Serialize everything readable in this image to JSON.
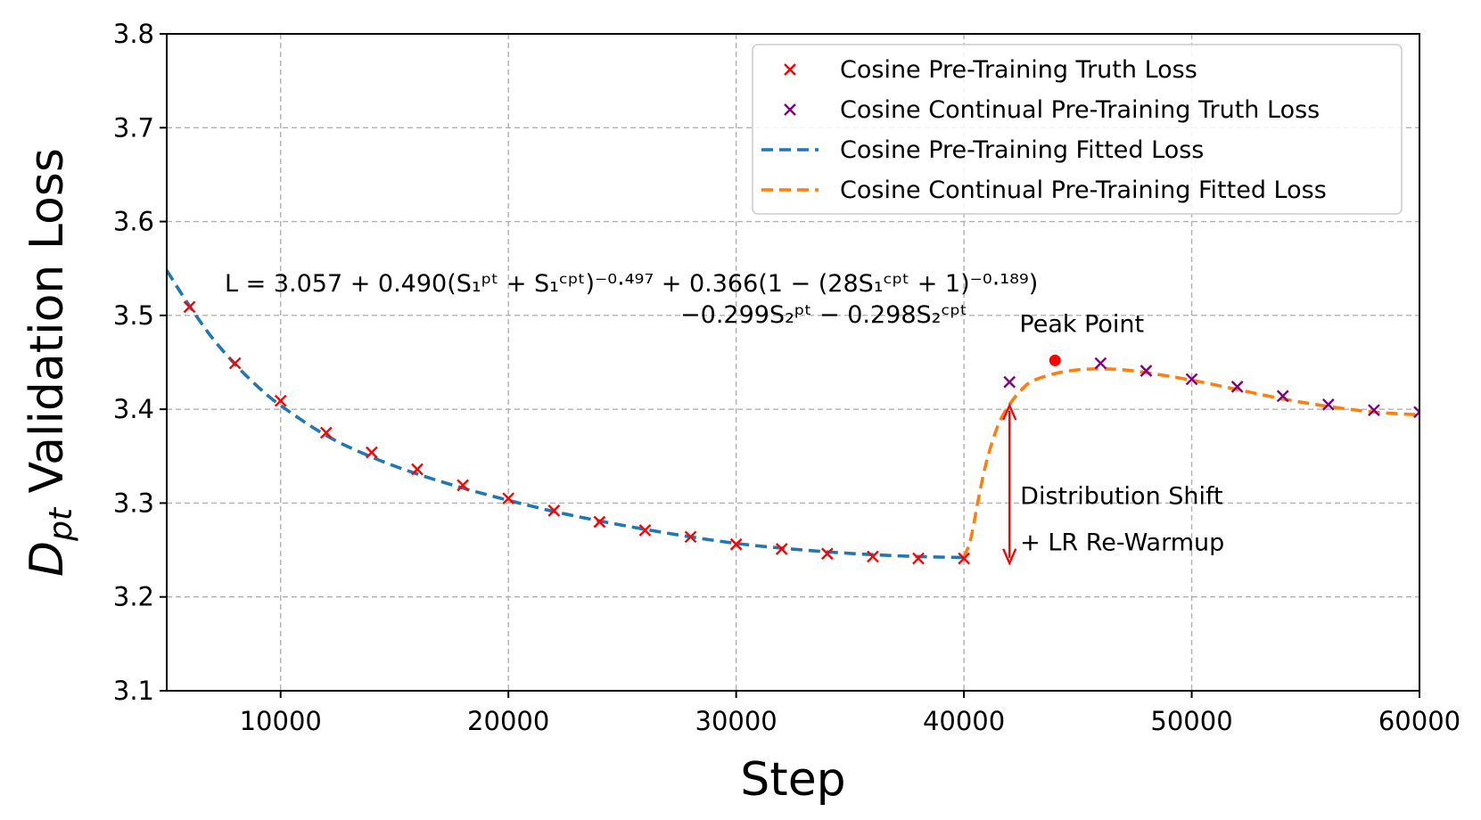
{
  "chart_data": {
    "type": "line",
    "xlabel": "Step",
    "ylabel_main": "D",
    "ylabel_sub": "pt",
    "ylabel_rest": " Validation Loss",
    "xlim": [
      5000,
      60000
    ],
    "ylim": [
      3.1,
      3.8
    ],
    "grid": true,
    "legend_placement": "upper-right",
    "x_ticks": [
      10000,
      20000,
      30000,
      40000,
      50000,
      60000
    ],
    "x_tick_labels": [
      "10000",
      "20000",
      "30000",
      "40000",
      "50000",
      "60000"
    ],
    "y_ticks": [
      3.1,
      3.2,
      3.3,
      3.4,
      3.5,
      3.6,
      3.7,
      3.8
    ],
    "y_tick_labels": [
      "3.1",
      "3.2",
      "3.3",
      "3.4",
      "3.5",
      "3.6",
      "3.7",
      "3.8"
    ],
    "series": [
      {
        "name": "Cosine Pre-Training Truth Loss",
        "kind": "scatter",
        "marker": "x",
        "color": "#ff0000",
        "x": [
          6000,
          8000,
          10000,
          12000,
          14000,
          16000,
          18000,
          20000,
          22000,
          24000,
          26000,
          28000,
          30000,
          32000,
          34000,
          36000,
          38000,
          40000
        ],
        "y": [
          3.509,
          3.449,
          3.409,
          3.375,
          3.354,
          3.336,
          3.319,
          3.305,
          3.292,
          3.28,
          3.271,
          3.264,
          3.256,
          3.251,
          3.246,
          3.243,
          3.241,
          3.241
        ]
      },
      {
        "name": "Cosine Continual Pre-Training Truth Loss",
        "kind": "scatter",
        "marker": "x",
        "color": "#800080",
        "x": [
          42000,
          46000,
          48000,
          50000,
          52000,
          54000,
          56000,
          58000,
          60000
        ],
        "y": [
          3.429,
          3.449,
          3.441,
          3.432,
          3.424,
          3.414,
          3.405,
          3.399,
          3.397
        ]
      },
      {
        "name": "Cosine Pre-Training Fitted Loss",
        "kind": "line",
        "dash": "dashed",
        "color": "#1f77b4",
        "x": [
          5000,
          6000,
          7000,
          8000,
          9000,
          10000,
          12000,
          14000,
          16000,
          18000,
          20000,
          22000,
          24000,
          26000,
          28000,
          30000,
          32000,
          34000,
          36000,
          38000,
          40000
        ],
        "y": [
          3.548,
          3.51,
          3.476,
          3.448,
          3.424,
          3.404,
          3.372,
          3.349,
          3.331,
          3.316,
          3.303,
          3.291,
          3.281,
          3.272,
          3.264,
          3.257,
          3.252,
          3.248,
          3.245,
          3.243,
          3.242
        ]
      },
      {
        "name": "Cosine Continual Pre-Training Fitted Loss",
        "kind": "line",
        "dash": "dashed",
        "color": "#ff7f0e",
        "x": [
          40000,
          40300,
          40600,
          41000,
          41500,
          42000,
          42500,
          43000,
          44000,
          45000,
          46000,
          47000,
          48000,
          50000,
          52000,
          54000,
          56000,
          58000,
          60000
        ],
        "y": [
          3.242,
          3.262,
          3.3,
          3.345,
          3.383,
          3.405,
          3.42,
          3.43,
          3.438,
          3.442,
          3.443,
          3.442,
          3.439,
          3.431,
          3.421,
          3.411,
          3.403,
          3.397,
          3.394
        ]
      }
    ],
    "peak_point": {
      "label": "Peak Point",
      "x": 44000,
      "y": 3.452,
      "color": "#ff0000"
    },
    "shift_annotation": {
      "line1": "Distribution Shift",
      "line2": "+ LR Re-Warmup",
      "x": 42000,
      "y_low": 3.236,
      "y_high": 3.404,
      "color": "#ff0000"
    },
    "equation": {
      "line1": "L = 3.057 + 0.490(S₁ᵖᵗ + S₁ᶜᵖᵗ)⁻⁰·⁴⁹⁷ + 0.366(1 − (28S₁ᶜᵖᵗ + 1)⁻⁰·¹⁸⁹)",
      "line2": "−0.299S₂ᵖᵗ − 0.298S₂ᶜᵖᵗ"
    }
  }
}
